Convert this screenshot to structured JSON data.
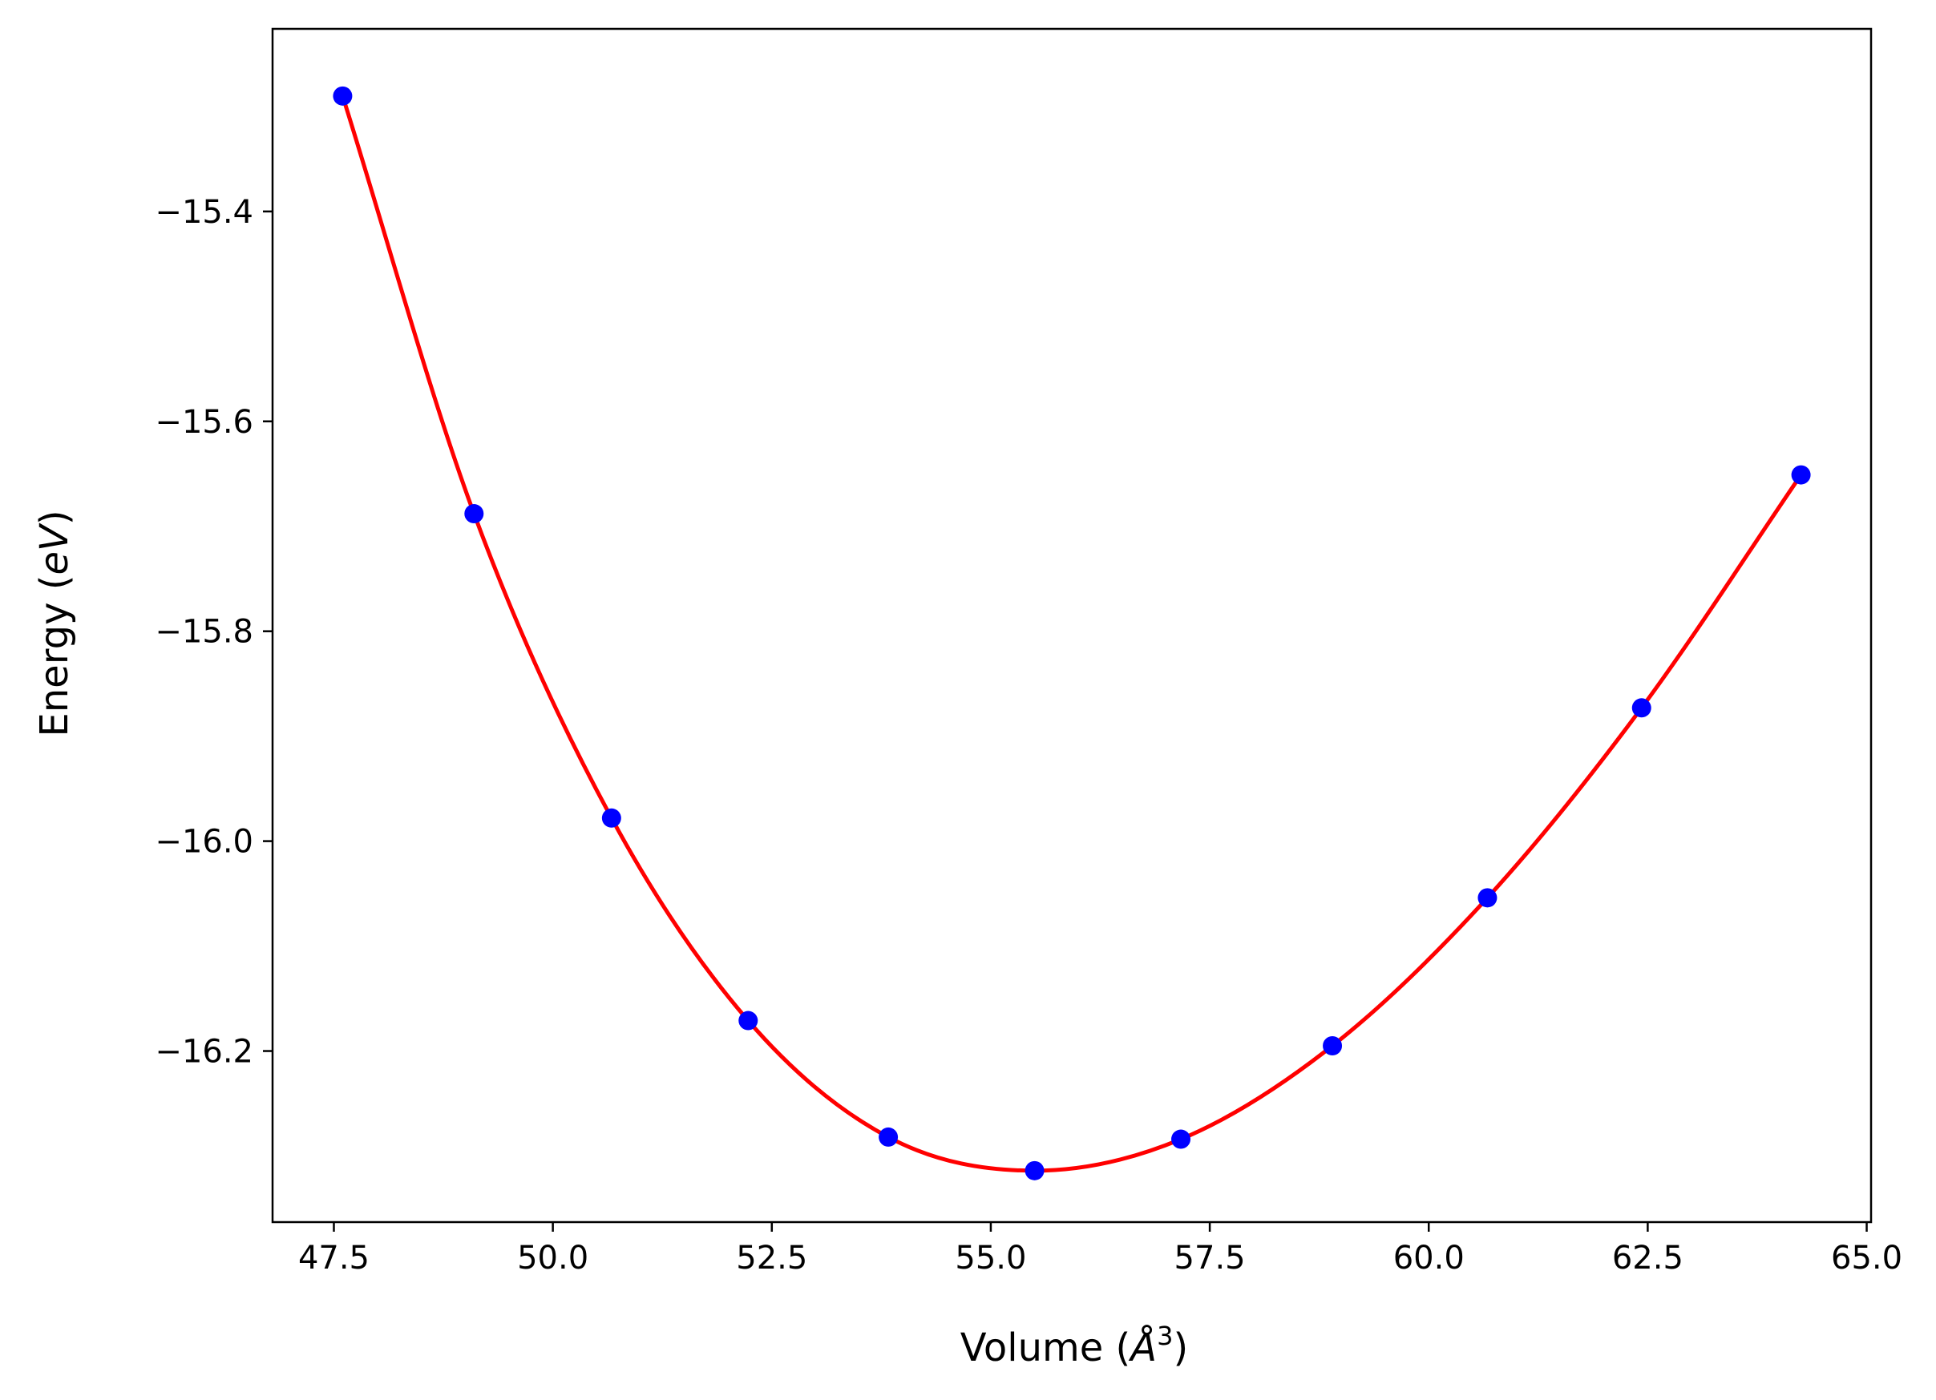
{
  "chart_data": {
    "type": "line",
    "title": "",
    "xlabel": "Volume (Å³)",
    "ylabel": "Energy (eV)",
    "xlabel_parts": {
      "text": "Volume (",
      "unit_letter": "Å",
      "unit_sup": "3",
      "close": ")"
    },
    "ylabel_parts": {
      "text": "Energy (",
      "unit": "eV",
      "close": ")"
    },
    "xlim": [
      46.8,
      65.05
    ],
    "ylim": [
      -16.363,
      -15.226
    ],
    "xticks": [
      47.5,
      50.0,
      52.5,
      55.0,
      57.5,
      60.0,
      62.5,
      65.0
    ],
    "xtick_labels": [
      "47.5",
      "50.0",
      "52.5",
      "55.0",
      "57.5",
      "60.0",
      "62.5",
      "65.0"
    ],
    "yticks": [
      -15.4,
      -15.6,
      -15.8,
      -16.0,
      -16.2
    ],
    "ytick_labels": [
      "−15.4",
      "−15.6",
      "−15.8",
      "−16.0",
      "−16.2"
    ],
    "grid": false,
    "series": [
      {
        "kind": "points",
        "color": "#0000ff",
        "x": [
          47.6,
          49.1,
          50.67,
          52.23,
          53.83,
          55.5,
          57.17,
          58.9,
          60.67,
          62.43,
          64.25
        ],
        "y": [
          -15.29,
          -15.688,
          -15.978,
          -16.171,
          -16.282,
          -16.314,
          -16.284,
          -16.195,
          -16.054,
          -15.873,
          -15.651
        ]
      },
      {
        "kind": "fit-curve",
        "color": "#ff0000",
        "x": [
          47.6,
          49.1,
          50.67,
          52.23,
          53.83,
          55.5,
          57.17,
          58.9,
          60.67,
          62.43,
          64.25
        ],
        "y": [
          -15.29,
          -15.688,
          -15.978,
          -16.171,
          -16.282,
          -16.314,
          -16.284,
          -16.195,
          -16.054,
          -15.873,
          -15.651
        ]
      }
    ]
  }
}
